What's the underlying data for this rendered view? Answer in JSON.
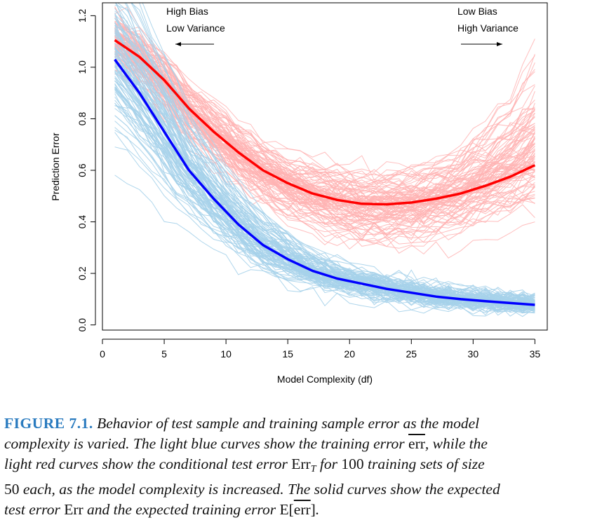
{
  "chart_data": {
    "type": "line",
    "xlabel": "Model Complexity (df)",
    "ylabel": "Prediction Error",
    "xlim": [
      0,
      36
    ],
    "ylim": [
      -0.02,
      1.25
    ],
    "xticks": [
      0,
      5,
      10,
      15,
      20,
      25,
      30,
      35
    ],
    "yticks": [
      0.0,
      0.2,
      0.4,
      0.6,
      0.8,
      1.0,
      1.2
    ],
    "annotations": {
      "left": {
        "line1": "High Bias",
        "line2": "Low Variance"
      },
      "right": {
        "line1": "Low Bias",
        "line2": "High Variance"
      }
    },
    "series": [
      {
        "color": "#ff0000",
        "x": [
          1,
          3,
          5,
          7,
          9,
          11,
          13,
          15,
          17,
          19,
          21,
          23,
          25,
          27,
          29,
          31,
          33,
          35
        ],
        "values": [
          1.105,
          1.04,
          0.95,
          0.84,
          0.75,
          0.67,
          0.6,
          0.55,
          0.51,
          0.485,
          0.47,
          0.468,
          0.475,
          0.49,
          0.51,
          0.54,
          0.575,
          0.62
        ]
      },
      {
        "color": "#0000ff",
        "x": [
          1,
          3,
          5,
          7,
          9,
          11,
          13,
          15,
          17,
          19,
          21,
          23,
          25,
          27,
          29,
          31,
          33,
          35
        ],
        "values": [
          1.03,
          0.9,
          0.75,
          0.6,
          0.49,
          0.39,
          0.31,
          0.255,
          0.21,
          0.18,
          0.16,
          0.14,
          0.125,
          0.11,
          0.1,
          0.092,
          0.085,
          0.078
        ]
      }
    ],
    "background_samples": [
      {
        "color": "#ffb3b3",
        "count": 100
      },
      {
        "color": "#a6d1ea",
        "count": 100
      }
    ]
  },
  "caption": {
    "label": "FIGURE 7.1.",
    "line1": " Behavior of test sample and training sample error as the model",
    "line2a": "complexity is varied. The light blue curves show the training error ",
    "err1": "err",
    "line2b": ", while the",
    "line3a": "light red curves show the conditional test error ",
    "errT": "Err",
    "errTsub": "T",
    "line3b": " for ",
    "num100": "100",
    "line3c": " training sets of size",
    "num50": "50",
    "line4": " each, as the model complexity is increased. The solid curves show the expected",
    "line5a": "test error ",
    "errPlain": "Err",
    "line5b": " and the expected training error ",
    "eLetter": "E[",
    "err2": "err",
    "eClose": "]",
    "period": "."
  }
}
